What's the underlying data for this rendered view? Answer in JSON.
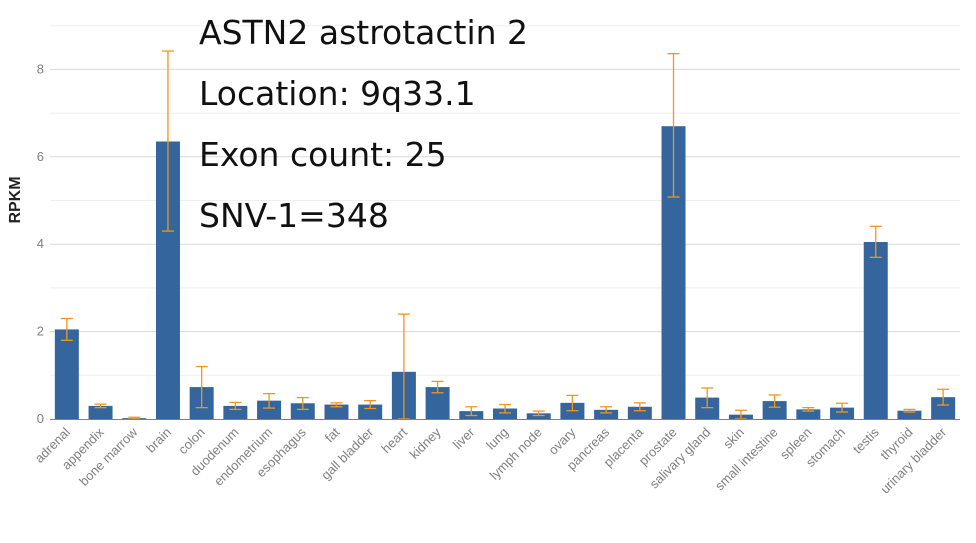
{
  "info": {
    "title": "ASTN2 astrotactin 2",
    "location": "Location: 9q33.1",
    "exon_count": "Exon count: 25",
    "snv": "SNV-1=348"
  },
  "colors": {
    "bar": "#34659c",
    "error": "#f0961e",
    "grid": "#e6e6e6",
    "axis": "#7f7f7f"
  },
  "chart_data": {
    "type": "bar",
    "ylabel": "RPKM",
    "ylim": [
      0,
      9
    ],
    "yticks": [
      0,
      2,
      4,
      6,
      8
    ],
    "grid": true,
    "categories": [
      "adrenal",
      "appendix",
      "bone marrow",
      "brain",
      "colon",
      "duodenum",
      "endometrium",
      "esophagus",
      "fat",
      "gall bladder",
      "heart",
      "kidney",
      "liver",
      "lung",
      "lymph node",
      "ovary",
      "pancreas",
      "placenta",
      "prostate",
      "salivary gland",
      "skin",
      "small intestine",
      "spleen",
      "stomach",
      "testis",
      "thyroid",
      "urinary bladder"
    ],
    "values": [
      2.05,
      0.3,
      0.02,
      6.35,
      0.73,
      0.3,
      0.42,
      0.36,
      0.33,
      0.33,
      1.08,
      0.73,
      0.18,
      0.24,
      0.13,
      0.37,
      0.21,
      0.28,
      6.7,
      0.49,
      0.1,
      0.41,
      0.22,
      0.26,
      4.05,
      0.19,
      0.5
    ],
    "error_low": [
      1.8,
      0.26,
      0.0,
      4.3,
      0.26,
      0.22,
      0.25,
      0.22,
      0.28,
      0.24,
      0.0,
      0.6,
      0.08,
      0.14,
      0.08,
      0.19,
      0.14,
      0.19,
      5.08,
      0.26,
      0.0,
      0.27,
      0.18,
      0.16,
      3.7,
      0.16,
      0.32
    ],
    "error_high": [
      2.3,
      0.34,
      0.04,
      8.42,
      1.2,
      0.38,
      0.58,
      0.49,
      0.37,
      0.42,
      2.4,
      0.86,
      0.28,
      0.33,
      0.18,
      0.54,
      0.28,
      0.37,
      8.36,
      0.71,
      0.2,
      0.55,
      0.26,
      0.36,
      4.41,
      0.22,
      0.68
    ]
  }
}
